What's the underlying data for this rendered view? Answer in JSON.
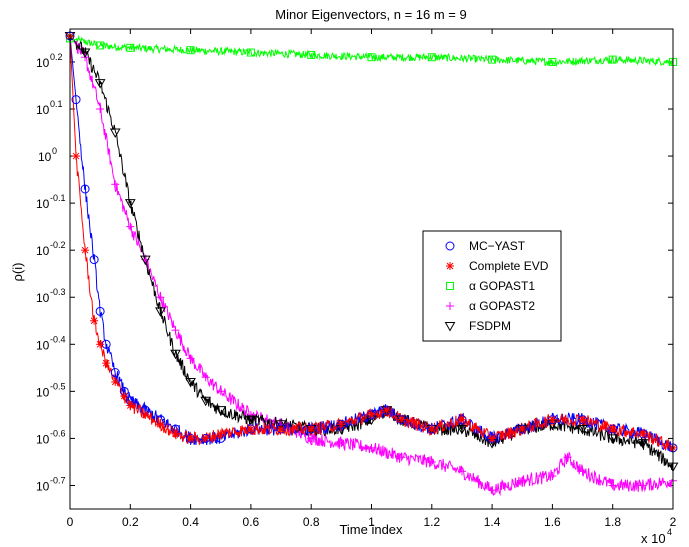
{
  "chart_data": {
    "type": "line",
    "title": "Minor Eigenvectors,  n = 16   m = 9",
    "xlabel": "Time index",
    "ylabel": "ρ(i)",
    "x_multiplier_label": "x 10",
    "x_multiplier_exp": "4",
    "xlim": [
      0,
      2
    ],
    "ylim": [
      -0.75,
      0.27
    ],
    "x_ticks": [
      "0",
      "0.2",
      "0.4",
      "0.6",
      "0.8",
      "1",
      "1.2",
      "1.4",
      "1.6",
      "1.8",
      "2"
    ],
    "y_ticks": [
      {
        "base": "10",
        "exp": "0.2",
        "value": 0.2
      },
      {
        "base": "10",
        "exp": "0.1",
        "value": 0.1
      },
      {
        "base": "10",
        "exp": "0",
        "value": 0
      },
      {
        "base": "10",
        "exp": "-0.1",
        "value": -0.1
      },
      {
        "base": "10",
        "exp": "-0.2",
        "value": -0.2
      },
      {
        "base": "10",
        "exp": "-0.3",
        "value": -0.3
      },
      {
        "base": "10",
        "exp": "-0.4",
        "value": -0.4
      },
      {
        "base": "10",
        "exp": "-0.5",
        "value": -0.5
      },
      {
        "base": "10",
        "exp": "-0.6",
        "value": -0.6
      },
      {
        "base": "10",
        "exp": "-0.7",
        "value": -0.7
      }
    ],
    "y_zero_label": "1",
    "legend_position": "center-right",
    "series": [
      {
        "name": "MC−YAST",
        "color": "#0000ff",
        "marker": "circle",
        "x": [
          0,
          0.02,
          0.05,
          0.08,
          0.1,
          0.12,
          0.15,
          0.18,
          0.2,
          0.25,
          0.3,
          0.35,
          0.4,
          0.45,
          0.5,
          0.6,
          0.7,
          0.8,
          0.9,
          1.0,
          1.05,
          1.1,
          1.2,
          1.3,
          1.4,
          1.5,
          1.6,
          1.7,
          1.8,
          1.9,
          2.0
        ],
        "y": [
          0.255,
          0.12,
          -0.07,
          -0.22,
          -0.33,
          -0.4,
          -0.46,
          -0.5,
          -0.52,
          -0.54,
          -0.56,
          -0.58,
          -0.6,
          -0.6,
          -0.6,
          -0.58,
          -0.58,
          -0.58,
          -0.57,
          -0.55,
          -0.54,
          -0.56,
          -0.58,
          -0.56,
          -0.6,
          -0.58,
          -0.56,
          -0.56,
          -0.58,
          -0.59,
          -0.62
        ]
      },
      {
        "name": "Complete EVD",
        "color": "#ff0000",
        "marker": "star",
        "x": [
          0,
          0.02,
          0.05,
          0.08,
          0.1,
          0.12,
          0.15,
          0.18,
          0.2,
          0.25,
          0.3,
          0.35,
          0.4,
          0.45,
          0.5,
          0.6,
          0.7,
          0.8,
          0.9,
          1.0,
          1.05,
          1.1,
          1.2,
          1.3,
          1.4,
          1.5,
          1.6,
          1.7,
          1.8,
          1.9,
          2.0
        ],
        "y": [
          0.255,
          0.0,
          -0.2,
          -0.35,
          -0.4,
          -0.44,
          -0.48,
          -0.51,
          -0.53,
          -0.55,
          -0.57,
          -0.59,
          -0.6,
          -0.6,
          -0.59,
          -0.58,
          -0.58,
          -0.58,
          -0.57,
          -0.55,
          -0.54,
          -0.56,
          -0.58,
          -0.56,
          -0.6,
          -0.58,
          -0.56,
          -0.56,
          -0.58,
          -0.59,
          -0.62
        ]
      },
      {
        "name": "α GOPAST1",
        "color": "#00ff00",
        "marker": "square",
        "x": [
          0,
          0.1,
          0.2,
          0.4,
          0.6,
          0.8,
          1.0,
          1.2,
          1.4,
          1.6,
          1.8,
          2.0
        ],
        "y": [
          0.25,
          0.235,
          0.23,
          0.225,
          0.22,
          0.215,
          0.21,
          0.21,
          0.205,
          0.2,
          0.205,
          0.2
        ]
      },
      {
        "name": "α GOPAST2",
        "color": "#ff00ff",
        "marker": "plus",
        "x": [
          0,
          0.05,
          0.1,
          0.15,
          0.2,
          0.25,
          0.3,
          0.35,
          0.4,
          0.45,
          0.5,
          0.6,
          0.7,
          0.8,
          0.9,
          1.0,
          1.1,
          1.2,
          1.3,
          1.4,
          1.5,
          1.6,
          1.65,
          1.7,
          1.8,
          1.9,
          2.0
        ],
        "y": [
          0.255,
          0.21,
          0.1,
          -0.06,
          -0.15,
          -0.22,
          -0.3,
          -0.37,
          -0.43,
          -0.47,
          -0.5,
          -0.55,
          -0.57,
          -0.6,
          -0.61,
          -0.62,
          -0.64,
          -0.65,
          -0.67,
          -0.71,
          -0.69,
          -0.68,
          -0.64,
          -0.67,
          -0.7,
          -0.7,
          -0.69
        ]
      },
      {
        "name": "FSDPM",
        "color": "#000000",
        "marker": "triangle-down",
        "x": [
          0,
          0.05,
          0.1,
          0.15,
          0.2,
          0.25,
          0.3,
          0.35,
          0.4,
          0.45,
          0.5,
          0.6,
          0.7,
          0.8,
          0.9,
          1.0,
          1.05,
          1.1,
          1.2,
          1.3,
          1.4,
          1.5,
          1.6,
          1.7,
          1.8,
          1.9,
          2.0
        ],
        "y": [
          0.255,
          0.22,
          0.155,
          0.05,
          -0.1,
          -0.22,
          -0.33,
          -0.42,
          -0.48,
          -0.52,
          -0.54,
          -0.56,
          -0.57,
          -0.58,
          -0.58,
          -0.56,
          -0.54,
          -0.56,
          -0.58,
          -0.58,
          -0.61,
          -0.58,
          -0.57,
          -0.58,
          -0.6,
          -0.61,
          -0.66
        ]
      }
    ]
  }
}
